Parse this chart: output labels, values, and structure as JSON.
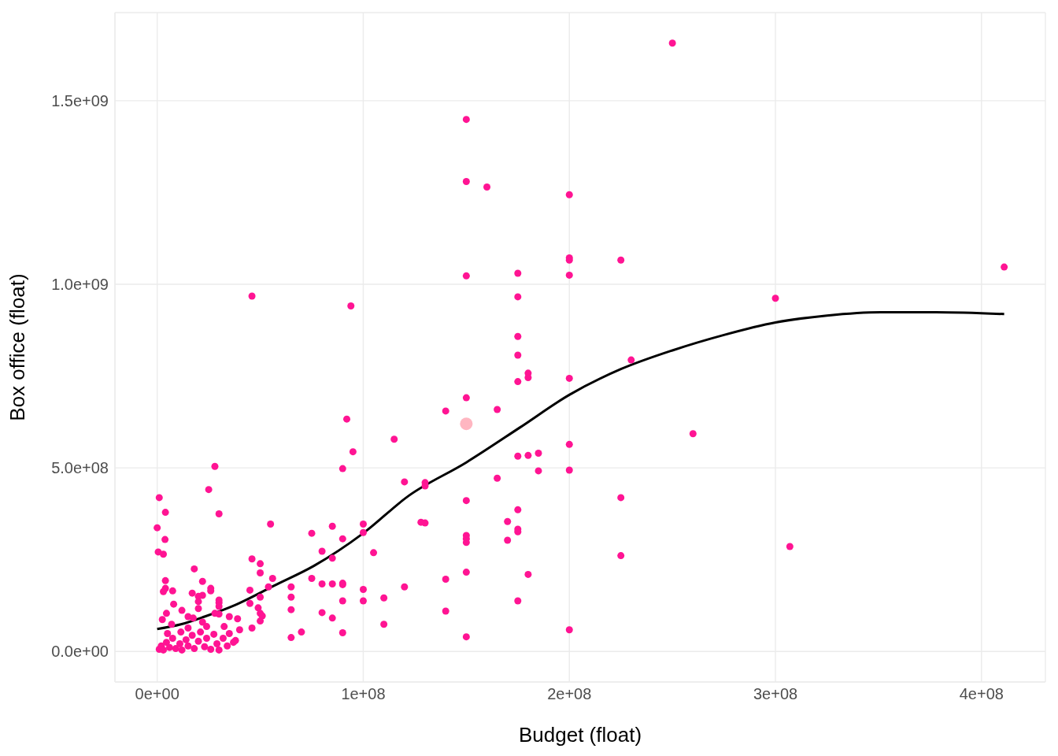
{
  "chart_data": {
    "type": "scatter",
    "xlabel": "Budget (float)",
    "ylabel": "Box office (float)",
    "xlim": [
      -20500000.0,
      431000000.0
    ],
    "ylim": [
      -83000000.0,
      1740000000.0
    ],
    "xticks": [
      {
        "value": 0,
        "label": "0e+00"
      },
      {
        "value": 100000000.0,
        "label": "1e+08"
      },
      {
        "value": 200000000.0,
        "label": "2e+08"
      },
      {
        "value": 300000000.0,
        "label": "3e+08"
      },
      {
        "value": 400000000.0,
        "label": "4e+08"
      }
    ],
    "yticks": [
      {
        "value": 0,
        "label": "0.0e+00"
      },
      {
        "value": 500000000.0,
        "label": "5.0e+08"
      },
      {
        "value": 1000000000.0,
        "label": "1.0e+09"
      },
      {
        "value": 1500000000.0,
        "label": "1.5e+09"
      }
    ],
    "grid": true,
    "series": [
      {
        "marker": "circle",
        "color": "#ff1493",
        "x": [
          250000000.0,
          150000000.0,
          150000000.0,
          160000000.0,
          200000000.0,
          200000000.0,
          200000000.0,
          225000000.0,
          411000000.0,
          150000000.0,
          175000000.0,
          200000000.0,
          46000000.0,
          175000000.0,
          300000000.0,
          94000000.0,
          175000000.0,
          175000000.0,
          230000000.0,
          180000000.0,
          180000000.0,
          200000000.0,
          175000000.0,
          150000000.0,
          140000000.0,
          165000000.0,
          92000000.0,
          115000000.0,
          95000000.0,
          260000000.0,
          200000000.0,
          175000000.0,
          180000000.0,
          185000000.0,
          28000000.0,
          90000000.0,
          185000000.0,
          200000000.0,
          165000000.0,
          120000000.0,
          130000000.0,
          130000000.0,
          150000000.0,
          225000000.0,
          1000000.0,
          25000000.0,
          175000000.0,
          4000000.0,
          30000000.0,
          170000000.0,
          55000000.0,
          100000000.0,
          128000000.0,
          130000000.0,
          0,
          175000000.0,
          175000000.0,
          75000000.0,
          100000000.0,
          85000000.0,
          150000000.0,
          150000000.0,
          150000000.0,
          170000000.0,
          3800000.0,
          307000000.0,
          90000000.0,
          80000000.0,
          105000000.0,
          500000.0,
          3000000.0,
          225000000.0,
          85000000.0,
          46000000.0,
          50000000.0,
          18000000.0,
          50000000.0,
          150000000.0,
          180000000.0,
          75000000.0,
          56000000.0,
          140000000.0,
          4000000.0,
          22000000.0,
          80000000.0,
          85000000.0,
          90000000.0,
          90000000.0,
          120000000.0,
          65000000.0,
          54000000.0,
          26000000.0,
          4000000.0,
          45000000.0,
          100000000.0,
          7500000.0,
          26000000.0,
          3000000.0,
          17000000.0,
          22000000.0,
          20000000.0,
          65000000.0,
          50000000.0,
          110000000.0,
          90000000.0,
          100000000.0,
          175000000.0,
          8000000.0,
          30000000.0,
          49000000.0,
          65000000.0,
          140000000.0,
          80000000.0,
          50000000.0,
          51000000.0,
          30000000.0,
          85000000.0,
          39000000.0,
          50000000.0,
          110000000.0,
          46000000.0,
          90000000.0,
          70000000.0,
          65000000.0,
          150000000.0,
          200000000.0,
          12000000.0,
          4500000.0,
          2500000.0,
          20000000.0,
          20000000.0,
          30000000.0,
          30000000.0,
          45000000.0,
          35000000.0,
          15000000.0,
          17500000.0,
          28000000.0,
          22000000.0,
          7000000.0,
          40000000.0,
          38000000.0,
          1000000.0,
          2000000.0,
          3000000.0,
          4500000.0,
          6000000.0,
          7500000.0,
          9000000.0,
          11000000.0,
          12000000.0,
          14000000.0,
          15000000.0,
          17000000.0,
          18000000.0,
          20000000.0,
          21000000.0,
          23000000.0,
          24000000.0,
          26000000.0,
          27500000.0,
          29000000.0,
          30000000.0,
          32000000.0,
          34000000.0,
          35000000.0,
          37000000.0,
          11500000.0,
          5000000.0,
          24000000.0,
          32500000.0,
          15000000.0
        ],
        "values": [
          1657000000.0,
          1449000000.0,
          1280000000.0,
          1265000000.0,
          1244000000.0,
          1072000000.0,
          1066000000.0,
          1066000000.0,
          1047000000.0,
          1023000000.0,
          1030000000.0,
          1025000000.0,
          968000000.0,
          966000000.0,
          962000000.0,
          941000000.0,
          858000000.0,
          807000000.0,
          794000000.0,
          758000000.0,
          746000000.0,
          744000000.0,
          735000000.0,
          691000000.0,
          655000000.0,
          659000000.0,
          633000000.0,
          578000000.0,
          544000000.0,
          593000000.0,
          564000000.0,
          532000000.0,
          534000000.0,
          540000000.0,
          504000000.0,
          498000000.0,
          492000000.0,
          494000000.0,
          472000000.0,
          462000000.0,
          460000000.0,
          451000000.0,
          411000000.0,
          419000000.0,
          419000000.0,
          441000000.0,
          386000000.0,
          379000000.0,
          375000000.0,
          354000000.0,
          347000000.0,
          347000000.0,
          352000000.0,
          350000000.0,
          337000000.0,
          333000000.0,
          326000000.0,
          322000000.0,
          324000000.0,
          341000000.0,
          316000000.0,
          307000000.0,
          297000000.0,
          303000000.0,
          305000000.0,
          286000000.0,
          307000000.0,
          273000000.0,
          269000000.0,
          271000000.0,
          265000000.0,
          261000000.0,
          254000000.0,
          252000000.0,
          239000000.0,
          225000000.0,
          214000000.0,
          216000000.0,
          210000000.0,
          199000000.0,
          199000000.0,
          197000000.0,
          193000000.0,
          191000000.0,
          184000000.0,
          184000000.0,
          186000000.0,
          182000000.0,
          176000000.0,
          176000000.0,
          176000000.0,
          172000000.0,
          172000000.0,
          167000000.0,
          169000000.0,
          165000000.0,
          165000000.0,
          163000000.0,
          159000000.0,
          153000000.0,
          150000000.0,
          148000000.0,
          148000000.0,
          146000000.0,
          138000000.0,
          138000000.0,
          138000000.0,
          129000000.0,
          133000000.0,
          119000000.0,
          114000000.0,
          110000000.0,
          106000000.0,
          104000000.0,
          97000000.0,
          102000000.0,
          91000000.0,
          89000000.0,
          83000000.0,
          74000000.0,
          64000000.0,
          51000000.0,
          53000000.0,
          38000000.0,
          40000000.0,
          59000000.0,
          112000000.0,
          104000000.0,
          87000000.0,
          136000000.0,
          117000000.0,
          140000000.0,
          123000000.0,
          131000000.0,
          95000000.0,
          95000000.0,
          91000000.0,
          104000000.0,
          80000000.0,
          74000000.0,
          59000000.0,
          30000000.0,
          6000000.0,
          15000000.0,
          4000000.0,
          25000000.0,
          11000000.0,
          36000000.0,
          8000000.0,
          21000000.0,
          4000000.0,
          32000000.0,
          15000000.0,
          44000000.0,
          8000000.0,
          28000000.0,
          53000000.0,
          13000000.0,
          36000000.0,
          6000000.0,
          47000000.0,
          21000000.0,
          4000000.0,
          36000000.0,
          15000000.0,
          49000000.0,
          25000000.0,
          53000000.0,
          49000000.0,
          68000000.0,
          68000000.0,
          64000000.0
        ]
      },
      {
        "marker": "circle",
        "color": "#ffb6c1",
        "x": [
          150000000.0
        ],
        "values": [
          620000000.0
        ]
      },
      {
        "type": "line",
        "marker": "none",
        "color": "#000000",
        "x": [
          0,
          11500000.0,
          23000000.0,
          38000000.0,
          57000000.0,
          76000000.0,
          100000000.0,
          122000000.0,
          150000000.0,
          176000000.0,
          200000000.0,
          225000000.0,
          250000000.0,
          275000000.0,
          300000000.0,
          325000000.0,
          351000000.0,
          378000000.0,
          411000000.0
        ],
        "values": [
          61000000.0,
          74000000.0,
          95000000.0,
          127000000.0,
          180000000.0,
          233000000.0,
          322000000.0,
          424000000.0,
          515000000.0,
          610000000.0,
          699000000.0,
          769000000.0,
          820000000.0,
          862000000.0,
          896000000.0,
          915000000.0,
          924000000.0,
          924000000.0,
          919000000.0
        ]
      }
    ]
  }
}
